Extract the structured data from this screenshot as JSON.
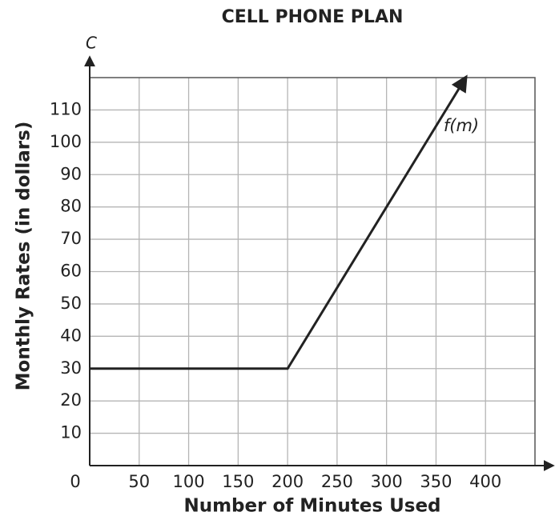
{
  "chart_data": {
    "type": "line",
    "title": "CELL PHONE PLAN",
    "x_label": "Number of Minutes Used",
    "y_label": "Monthly Rates (in dollars)",
    "y_axis_letter": "C",
    "annotation": "f(m)",
    "x": [
      0,
      200,
      380
    ],
    "values": [
      30,
      30,
      120
    ],
    "color": "#222222",
    "xlim": [
      0,
      450
    ],
    "ylim": [
      0,
      120
    ],
    "xticks": [
      0,
      50,
      100,
      150,
      200,
      250,
      300,
      350,
      400
    ],
    "yticks": [
      10,
      20,
      30,
      40,
      50,
      60,
      70,
      80,
      90,
      100,
      110
    ],
    "grid": true
  }
}
